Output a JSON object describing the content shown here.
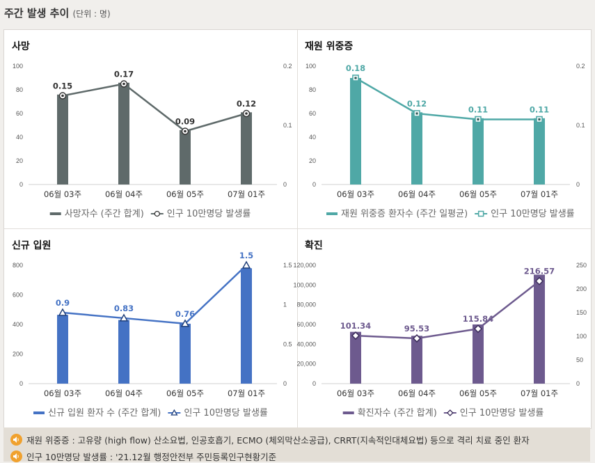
{
  "header": {
    "title": "주간 발생 추이",
    "unit": "(단위 : 명)"
  },
  "colors": {
    "death": "#5f6a6a",
    "severe": "#4fa8a6",
    "admission": "#4472c4",
    "confirmed": "#6d5a8e"
  },
  "chart_data": [
    {
      "type": "bar+line",
      "title": "사망",
      "categories": [
        "06월 03주",
        "06월 04주",
        "06월 05주",
        "07월 01주"
      ],
      "series": [
        {
          "name": "사망자수 (주간 합계)",
          "kind": "bar",
          "axis": "left",
          "values": [
            76,
            86,
            46,
            61
          ]
        },
        {
          "name": "인구 10만명당 발생률",
          "kind": "line",
          "axis": "right",
          "marker": "circle",
          "values": [
            0.15,
            0.17,
            0.09,
            0.12
          ],
          "labels": [
            "0.15",
            "0.17",
            "0.09",
            "0.12"
          ]
        }
      ],
      "ylim_left": [
        0,
        100
      ],
      "yticks_left": [
        "0",
        "20",
        "40",
        "60",
        "80",
        "100"
      ],
      "ylim_right": [
        0,
        0.2
      ],
      "yticks_right": [
        "0",
        "0.1",
        "0.2"
      ],
      "legend": "bottom"
    },
    {
      "type": "bar+line",
      "title": "재원 위중증",
      "categories": [
        "06월 03주",
        "06월 04주",
        "06월 05주",
        "07월 01주"
      ],
      "series": [
        {
          "name": "재원 위중증 환자수 (주간 일평균)",
          "kind": "bar",
          "axis": "left",
          "values": [
            90,
            61,
            56,
            56
          ]
        },
        {
          "name": "인구 10만명당 발생률",
          "kind": "line",
          "axis": "right",
          "marker": "square",
          "values": [
            0.18,
            0.12,
            0.11,
            0.11
          ],
          "labels": [
            "0.18",
            "0.12",
            "0.11",
            "0.11"
          ]
        }
      ],
      "ylim_left": [
        0,
        100
      ],
      "yticks_left": [
        "0",
        "20",
        "40",
        "60",
        "80",
        "100"
      ],
      "ylim_right": [
        0,
        0.2
      ],
      "yticks_right": [
        "0",
        "0.1",
        "0.2"
      ],
      "legend": "bottom"
    },
    {
      "type": "bar+line",
      "title": "신규 입원",
      "categories": [
        "06월 03주",
        "06월 04주",
        "06월 05주",
        "07월 01주"
      ],
      "series": [
        {
          "name": "신규 입원 환자 수 (주간 합계)",
          "kind": "bar",
          "axis": "left",
          "values": [
            465,
            430,
            405,
            780
          ]
        },
        {
          "name": "인구 10만명당 발생률",
          "kind": "line",
          "axis": "right",
          "marker": "triangle",
          "values": [
            0.9,
            0.83,
            0.76,
            1.5
          ],
          "labels": [
            "0.9",
            "0.83",
            "0.76",
            "1.5"
          ]
        }
      ],
      "ylim_left": [
        0,
        800
      ],
      "yticks_left": [
        "0",
        "200",
        "400",
        "600",
        "800"
      ],
      "ylim_right": [
        0,
        1.5
      ],
      "yticks_right": [
        "0",
        "0.5",
        "1",
        "1.5"
      ],
      "legend": "bottom"
    },
    {
      "type": "bar+line",
      "title": "확진",
      "categories": [
        "06월 03주",
        "06월 04주",
        "06월 05주",
        "07월 01주"
      ],
      "series": [
        {
          "name": "확진자수 (주간 합계)",
          "kind": "bar",
          "axis": "left",
          "values": [
            52500,
            48500,
            60000,
            110500
          ]
        },
        {
          "name": "인구 10만명당 발생률",
          "kind": "line",
          "axis": "right",
          "marker": "diamond",
          "values": [
            101.34,
            95.53,
            115.84,
            216.57
          ],
          "labels": [
            "101.34",
            "95.53",
            "115.84",
            "216.57"
          ]
        }
      ],
      "ylim_left": [
        0,
        120000
      ],
      "yticks_left": [
        "0",
        "20,000",
        "40,000",
        "60,000",
        "80,000",
        "100,000",
        "120,000"
      ],
      "ylim_right": [
        0,
        250
      ],
      "yticks_right": [
        "0",
        "50",
        "100",
        "150",
        "200",
        "250"
      ],
      "legend": "bottom"
    }
  ],
  "notes": [
    "재원 위중증 : 고유량 (high flow) 산소요법, 인공호흡기, ECMO (체외막산소공급), CRRT(지속적인대체요법) 등으로 격리 치료 중인 환자",
    "인구 10만명당 발생률 : '21.12월 행정안전부 주민등록인구현황기준"
  ]
}
